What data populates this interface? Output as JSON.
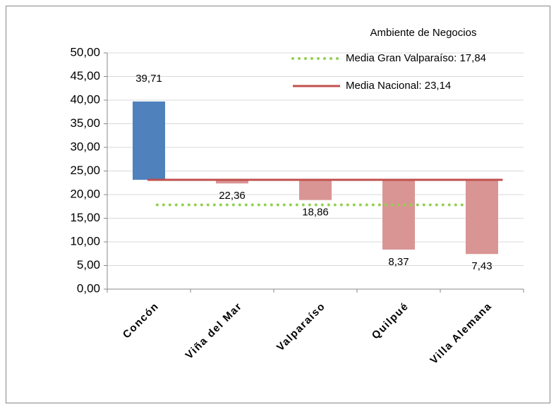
{
  "chart_data": {
    "type": "floating-bar",
    "categories": [
      "Concón",
      "Viña del Mar",
      "Valparaíso",
      "Quilpué",
      "Villa Alemana"
    ],
    "values": [
      39.71,
      22.36,
      18.86,
      8.37,
      7.43
    ],
    "value_labels": [
      "39,71",
      "22,36",
      "18,86",
      "8,37",
      "7,43"
    ],
    "colors": [
      "#4f81bd",
      "#d99594",
      "#d99594",
      "#d99594",
      "#d99594"
    ],
    "legend_title": "Ambiente de Negocios",
    "reference_lines": [
      {
        "name": "Media Gran Valparaíso: 17,84",
        "value": 17.84,
        "color": "#92d050",
        "style": "dotted"
      },
      {
        "name": "Media Nacional: 23,14",
        "value": 23.14,
        "color": "#c0504d",
        "style": "solid"
      }
    ],
    "ylim": [
      0,
      50
    ],
    "yticks": [
      {
        "value": 0,
        "label": "0,00"
      },
      {
        "value": 5,
        "label": "5,00"
      },
      {
        "value": 10,
        "label": "10,00"
      },
      {
        "value": 15,
        "label": "15,00"
      },
      {
        "value": 20,
        "label": "20,00"
      },
      {
        "value": 25,
        "label": "25,00"
      },
      {
        "value": 30,
        "label": "30,00"
      },
      {
        "value": 35,
        "label": "35,00"
      },
      {
        "value": 40,
        "label": "40,00"
      },
      {
        "value": 45,
        "label": "45,00"
      },
      {
        "value": 50,
        "label": "50,00"
      }
    ],
    "grid": true
  }
}
